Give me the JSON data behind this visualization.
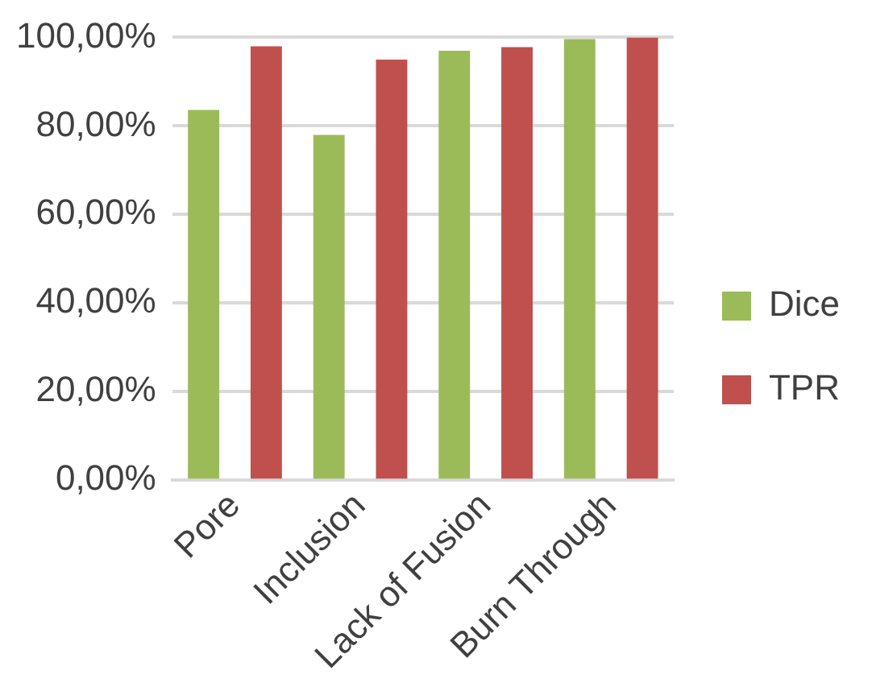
{
  "chart_data": {
    "type": "bar",
    "categories": [
      "Pore",
      "Inclusion",
      "Lack of Fusion",
      "Burn Through"
    ],
    "series": [
      {
        "name": "Dice",
        "color": "#9bbb59",
        "values": [
          83.6,
          78.0,
          97.0,
          99.6
        ]
      },
      {
        "name": "TPR",
        "color": "#c0504d",
        "values": [
          98.0,
          95.0,
          97.8,
          100
        ]
      }
    ],
    "ylim": [
      0,
      100
    ],
    "yticks": [
      {
        "value": 0,
        "label": "0,00%"
      },
      {
        "value": 20,
        "label": "20,00%"
      },
      {
        "value": 40,
        "label": "40,00%"
      },
      {
        "value": 60,
        "label": "60,00%"
      },
      {
        "value": 80,
        "label": "80,00%"
      },
      {
        "value": 100,
        "label": "100,00%"
      }
    ],
    "grid": "y",
    "legend": "right"
  }
}
